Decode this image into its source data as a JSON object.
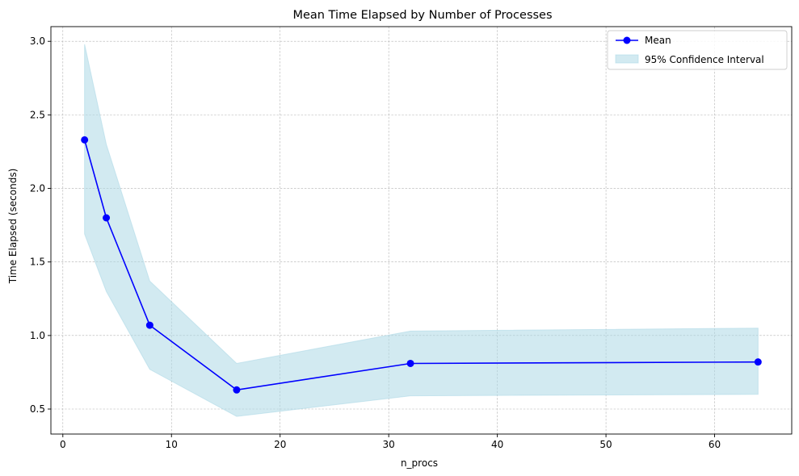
{
  "chart_data": {
    "type": "line",
    "title": "Mean Time Elapsed by Number of Processes",
    "xlabel": "n_procs",
    "ylabel": "Time Elapsed (seconds)",
    "xlim": [
      -1.1,
      67.1
    ],
    "ylim": [
      0.33,
      3.1
    ],
    "xticks": [
      0,
      10,
      20,
      30,
      40,
      50,
      60
    ],
    "xtick_labels": [
      "0",
      "10",
      "20",
      "30",
      "40",
      "50",
      "60"
    ],
    "yticks": [
      0.5,
      1.0,
      1.5,
      2.0,
      2.5,
      3.0
    ],
    "ytick_labels": [
      "0.5",
      "1.0",
      "1.5",
      "2.0",
      "2.5",
      "3.0"
    ],
    "grid": true,
    "legend_position": "top-right",
    "x": [
      2,
      4,
      8,
      16,
      32,
      64
    ],
    "series": [
      {
        "name": "Mean",
        "kind": "line-marker",
        "color": "#0000ff",
        "values": [
          2.33,
          1.8,
          1.07,
          0.63,
          0.81,
          0.82
        ]
      },
      {
        "name": "95% Confidence Interval",
        "kind": "band",
        "color": "#add8e6",
        "lower": [
          1.69,
          1.3,
          0.77,
          0.45,
          0.59,
          0.6
        ],
        "upper": [
          2.98,
          2.3,
          1.37,
          0.81,
          1.03,
          1.05
        ]
      }
    ]
  }
}
